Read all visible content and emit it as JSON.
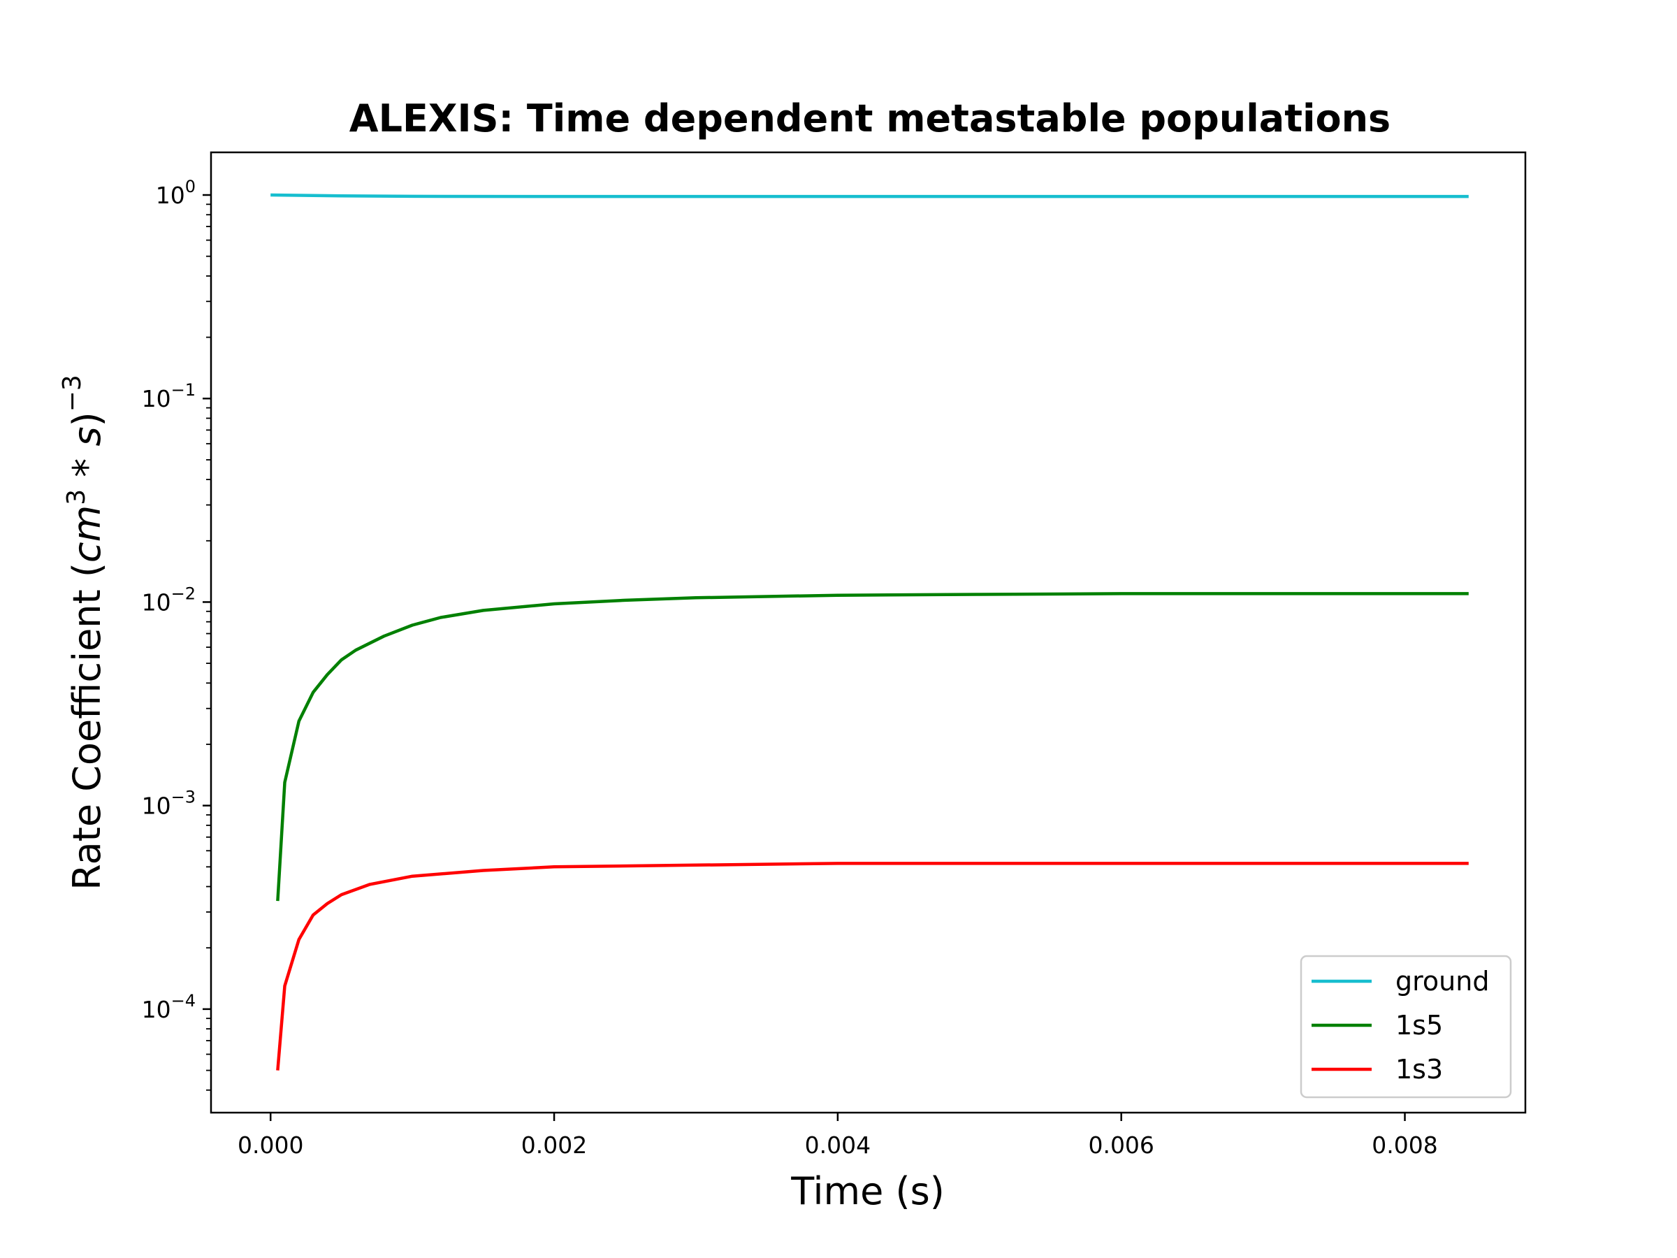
{
  "chart_data": {
    "type": "line",
    "title": "ALEXIS: Time dependent metastable populations",
    "xlabel": "Time (s)",
    "ylabel_parts": {
      "text": "Rate Coefficient (",
      "var1": "cm",
      "sup1": "3",
      "op": " * ",
      "var2": "s",
      "close": ")",
      "sup2": "−3"
    },
    "xscale": "linear",
    "yscale": "log",
    "xlim": [
      -0.00042,
      0.00885
    ],
    "ylim": [
      3.1e-05,
      1.62
    ],
    "xticks": [
      {
        "value": 0.0,
        "label": "0.000"
      },
      {
        "value": 0.002,
        "label": "0.002"
      },
      {
        "value": 0.004,
        "label": "0.004"
      },
      {
        "value": 0.006,
        "label": "0.006"
      },
      {
        "value": 0.008,
        "label": "0.008"
      }
    ],
    "yticks": [
      {
        "value": 1,
        "base": "10",
        "exp": "0"
      },
      {
        "value": 0.1,
        "base": "10",
        "exp": "−1"
      },
      {
        "value": 0.01,
        "base": "10",
        "exp": "−2"
      },
      {
        "value": 0.001,
        "base": "10",
        "exp": "−3"
      },
      {
        "value": 0.0001,
        "base": "10",
        "exp": "−4"
      }
    ],
    "grid": false,
    "legend_position": "lower right",
    "series": [
      {
        "name": "ground",
        "color": "#17becf",
        "x": [
          0.0,
          0.0005,
          0.001,
          0.002,
          0.004,
          0.006,
          0.00845
        ],
        "y": [
          1.0,
          0.99,
          0.985,
          0.984,
          0.984,
          0.984,
          0.984
        ]
      },
      {
        "name": "1s5",
        "color": "#008000",
        "x": [
          5e-05,
          0.0001,
          0.0002,
          0.0003,
          0.0004,
          0.0005,
          0.0006,
          0.0008,
          0.001,
          0.0012,
          0.0015,
          0.002,
          0.0025,
          0.003,
          0.004,
          0.005,
          0.006,
          0.007,
          0.008,
          0.00845
        ],
        "y": [
          0.00034,
          0.0013,
          0.0026,
          0.0036,
          0.0044,
          0.0052,
          0.0058,
          0.0068,
          0.0077,
          0.0084,
          0.0091,
          0.0098,
          0.0102,
          0.0105,
          0.0108,
          0.0109,
          0.011,
          0.011,
          0.011,
          0.011
        ]
      },
      {
        "name": "1s3",
        "color": "#ff0000",
        "x": [
          5e-05,
          0.0001,
          0.0002,
          0.0003,
          0.0004,
          0.0005,
          0.0007,
          0.001,
          0.0015,
          0.002,
          0.003,
          0.004,
          0.005,
          0.006,
          0.007,
          0.008,
          0.00845
        ],
        "y": [
          5e-05,
          0.00013,
          0.00022,
          0.00029,
          0.00033,
          0.000365,
          0.00041,
          0.00045,
          0.00048,
          0.0005,
          0.00051,
          0.00052,
          0.00052,
          0.00052,
          0.00052,
          0.00052,
          0.00052
        ]
      }
    ]
  }
}
